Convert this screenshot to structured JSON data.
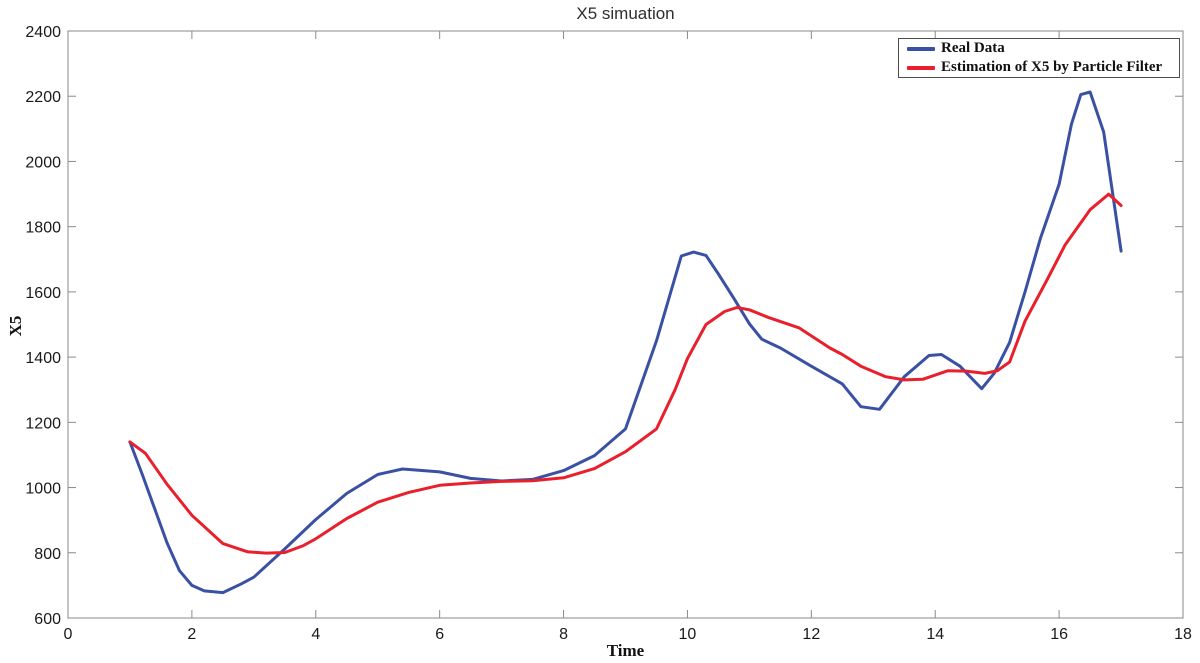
{
  "figure": {
    "title": "X5 simuation",
    "xlabel": "Time",
    "ylabel": "X5"
  },
  "chart_data": {
    "type": "line",
    "title": "X5 simuation",
    "xlabel": "Time",
    "ylabel": "X5",
    "xlim": [
      0,
      18
    ],
    "ylim": [
      600,
      2400
    ],
    "x_ticks": [
      0,
      2,
      4,
      6,
      8,
      10,
      12,
      14,
      16,
      18
    ],
    "y_ticks": [
      600,
      800,
      1000,
      1200,
      1400,
      1600,
      1800,
      2000,
      2200,
      2400
    ],
    "grid": false,
    "legend_position": "top-right",
    "axis_color": "#8a8a8a",
    "tick_label_color": "#1a1a1a",
    "series": [
      {
        "name": "Real Data",
        "color": "#3A51A3",
        "points": [
          [
            1,
            1140
          ],
          [
            1.2,
            1040
          ],
          [
            1.4,
            935
          ],
          [
            1.6,
            830
          ],
          [
            1.8,
            745
          ],
          [
            2,
            700
          ],
          [
            2.2,
            683
          ],
          [
            2.5,
            678
          ],
          [
            2.8,
            705
          ],
          [
            3,
            725
          ],
          [
            3.5,
            812
          ],
          [
            4,
            902
          ],
          [
            4.5,
            982
          ],
          [
            5,
            1040
          ],
          [
            5.4,
            1057
          ],
          [
            6,
            1048
          ],
          [
            6.5,
            1028
          ],
          [
            7,
            1020
          ],
          [
            7.5,
            1025
          ],
          [
            8,
            1052
          ],
          [
            8.5,
            1098
          ],
          [
            9,
            1180
          ],
          [
            9.5,
            1450
          ],
          [
            9.9,
            1710
          ],
          [
            10.1,
            1722
          ],
          [
            10.3,
            1712
          ],
          [
            10.5,
            1655
          ],
          [
            10.75,
            1580
          ],
          [
            11,
            1502
          ],
          [
            11.2,
            1455
          ],
          [
            11.5,
            1428
          ],
          [
            12,
            1372
          ],
          [
            12.5,
            1318
          ],
          [
            12.8,
            1248
          ],
          [
            13.1,
            1240
          ],
          [
            13.5,
            1340
          ],
          [
            13.9,
            1405
          ],
          [
            14.1,
            1408
          ],
          [
            14.4,
            1372
          ],
          [
            14.75,
            1303
          ],
          [
            14.95,
            1350
          ],
          [
            15.2,
            1445
          ],
          [
            15.45,
            1600
          ],
          [
            15.7,
            1765
          ],
          [
            16,
            1930
          ],
          [
            16.2,
            2115
          ],
          [
            16.35,
            2205
          ],
          [
            16.5,
            2213
          ],
          [
            16.72,
            2090
          ],
          [
            17,
            1725
          ]
        ]
      },
      {
        "name": "Estimation of X5 by Particle Filter",
        "color": "#E9202C",
        "points": [
          [
            1,
            1140
          ],
          [
            1.25,
            1105
          ],
          [
            1.6,
            1010
          ],
          [
            2,
            915
          ],
          [
            2.5,
            828
          ],
          [
            2.9,
            803
          ],
          [
            3.2,
            799
          ],
          [
            3.5,
            801
          ],
          [
            3.8,
            822
          ],
          [
            4,
            843
          ],
          [
            4.5,
            905
          ],
          [
            5,
            955
          ],
          [
            5.5,
            985
          ],
          [
            6,
            1007
          ],
          [
            6.5,
            1014
          ],
          [
            7,
            1019
          ],
          [
            7.5,
            1021
          ],
          [
            8,
            1030
          ],
          [
            8.5,
            1058
          ],
          [
            9,
            1110
          ],
          [
            9.5,
            1180
          ],
          [
            9.8,
            1300
          ],
          [
            10,
            1395
          ],
          [
            10.3,
            1500
          ],
          [
            10.6,
            1540
          ],
          [
            10.8,
            1552
          ],
          [
            11,
            1545
          ],
          [
            11.3,
            1522
          ],
          [
            11.8,
            1490
          ],
          [
            12.3,
            1428
          ],
          [
            12.5,
            1408
          ],
          [
            12.8,
            1372
          ],
          [
            13.2,
            1340
          ],
          [
            13.5,
            1330
          ],
          [
            13.8,
            1332
          ],
          [
            14.2,
            1358
          ],
          [
            14.5,
            1357
          ],
          [
            14.8,
            1350
          ],
          [
            15,
            1358
          ],
          [
            15.2,
            1385
          ],
          [
            15.45,
            1510
          ],
          [
            15.8,
            1635
          ],
          [
            16.1,
            1745
          ],
          [
            16.5,
            1852
          ],
          [
            16.8,
            1900
          ],
          [
            17,
            1865
          ]
        ]
      }
    ]
  }
}
